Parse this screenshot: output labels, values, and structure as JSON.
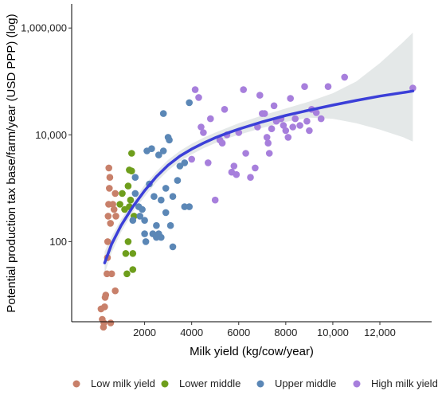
{
  "chart_data": {
    "type": "scatter",
    "xlabel": "Milk yield (kg/cow/year)",
    "ylabel": "Potential production tax base/farm/year (USD PPP) (log)",
    "x_range": [
      -1100,
      14200
    ],
    "y_log_range": [
      0.5,
      6.45
    ],
    "x_ticks": [
      {
        "value": 2000,
        "label": "2000"
      },
      {
        "value": 4000,
        "label": "4000"
      },
      {
        "value": 6000,
        "label": "6000"
      },
      {
        "value": 8000,
        "label": "8000"
      },
      {
        "value": 10000,
        "label": "10,000"
      },
      {
        "value": 12000,
        "label": "12,000"
      }
    ],
    "y_ticks": [
      {
        "value": 100,
        "label": "100"
      },
      {
        "value": 10000,
        "label": "10,000"
      },
      {
        "value": 1000000,
        "label": "1,000,000"
      }
    ],
    "grid": false,
    "legend_position": "bottom",
    "series": [
      {
        "name": "Low milk yield",
        "color": "#c8806a",
        "points": [
          [
            150,
            5.5
          ],
          [
            200,
            3.5
          ],
          [
            250,
            2.5
          ],
          [
            270,
            3
          ],
          [
            300,
            6
          ],
          [
            320,
            9
          ],
          [
            350,
            10
          ],
          [
            400,
            25
          ],
          [
            420,
            50
          ],
          [
            430,
            100
          ],
          [
            450,
            300
          ],
          [
            470,
            500
          ],
          [
            480,
            2400
          ],
          [
            500,
            1000
          ],
          [
            520,
            1600
          ],
          [
            550,
            220
          ],
          [
            560,
            3
          ],
          [
            600,
            25
          ],
          [
            650,
            500
          ],
          [
            700,
            400
          ],
          [
            750,
            12
          ],
          [
            750,
            800
          ],
          [
            780,
            300
          ]
        ]
      },
      {
        "name": "Lower middle",
        "color": "#6e9e1c",
        "points": [
          [
            950,
            500
          ],
          [
            1050,
            800
          ],
          [
            1150,
            400
          ],
          [
            1200,
            60
          ],
          [
            1250,
            25
          ],
          [
            1300,
            100
          ],
          [
            1300,
            1100
          ],
          [
            1350,
            450
          ],
          [
            1350,
            2200
          ],
          [
            1400,
            600
          ],
          [
            1450,
            4500
          ],
          [
            1450,
            2100
          ],
          [
            1500,
            30
          ],
          [
            1500,
            60
          ],
          [
            1550,
            300
          ]
        ]
      },
      {
        "name": "Upper middle",
        "color": "#5b87b6",
        "points": [
          [
            1500,
            250
          ],
          [
            1600,
            800
          ],
          [
            1600,
            1600
          ],
          [
            1750,
            450
          ],
          [
            1800,
            300
          ],
          [
            1900,
            400
          ],
          [
            2000,
            250
          ],
          [
            2000,
            140
          ],
          [
            2050,
            100
          ],
          [
            2100,
            5000
          ],
          [
            2200,
            1200
          ],
          [
            2300,
            5500
          ],
          [
            2350,
            140
          ],
          [
            2400,
            700
          ],
          [
            2500,
            120
          ],
          [
            2500,
            200
          ],
          [
            2600,
            4200
          ],
          [
            2600,
            140
          ],
          [
            2700,
            120
          ],
          [
            2700,
            600
          ],
          [
            2800,
            25000
          ],
          [
            2800,
            5000
          ],
          [
            2900,
            350
          ],
          [
            2900,
            1000
          ],
          [
            3000,
            9000
          ],
          [
            3050,
            8000
          ],
          [
            3100,
            200
          ],
          [
            3200,
            700
          ],
          [
            3200,
            80
          ],
          [
            3400,
            1400
          ],
          [
            3500,
            2600
          ],
          [
            3700,
            450
          ],
          [
            3700,
            3000
          ],
          [
            3900,
            450
          ],
          [
            3900,
            40000
          ]
        ]
      },
      {
        "name": "High milk yield",
        "color": "#a77fdc",
        "points": [
          [
            4000,
            3500
          ],
          [
            4150,
            70000
          ],
          [
            4300,
            50000
          ],
          [
            4400,
            14000
          ],
          [
            4500,
            11000
          ],
          [
            4700,
            3000
          ],
          [
            4800,
            20000
          ],
          [
            5000,
            600
          ],
          [
            5200,
            8000
          ],
          [
            5300,
            7000
          ],
          [
            5400,
            30000
          ],
          [
            5500,
            10000
          ],
          [
            5700,
            2000
          ],
          [
            5800,
            2600
          ],
          [
            5900,
            1800
          ],
          [
            6000,
            11000
          ],
          [
            6200,
            70000
          ],
          [
            6300,
            4500
          ],
          [
            6500,
            1600
          ],
          [
            6700,
            2400
          ],
          [
            6800,
            14000
          ],
          [
            6900,
            55000
          ],
          [
            7000,
            25000
          ],
          [
            7100,
            25000
          ],
          [
            7200,
            9000
          ],
          [
            7250,
            7000
          ],
          [
            7300,
            4500
          ],
          [
            7400,
            13000
          ],
          [
            7500,
            35000
          ],
          [
            7600,
            18000
          ],
          [
            7800,
            20000
          ],
          [
            7900,
            15000
          ],
          [
            8000,
            12000
          ],
          [
            8100,
            9000
          ],
          [
            8200,
            48000
          ],
          [
            8300,
            14000
          ],
          [
            8400,
            20000
          ],
          [
            8600,
            15000
          ],
          [
            8800,
            80000
          ],
          [
            8900,
            18000
          ],
          [
            9000,
            12000
          ],
          [
            9100,
            30000
          ],
          [
            9300,
            26000
          ],
          [
            9500,
            20000
          ],
          [
            9800,
            80000
          ],
          [
            10500,
            120000
          ],
          [
            13400,
            75000
          ]
        ]
      }
    ],
    "fit_line": {
      "color": "#3b3fd8",
      "points": [
        [
          300,
          40
        ],
        [
          600,
          90
        ],
        [
          1000,
          200
        ],
        [
          1500,
          450
        ],
        [
          2000,
          900
        ],
        [
          2500,
          1650
        ],
        [
          3000,
          2700
        ],
        [
          3500,
          4000
        ],
        [
          4000,
          5400
        ],
        [
          4500,
          7000
        ],
        [
          5000,
          8800
        ],
        [
          5500,
          10700
        ],
        [
          6000,
          12800
        ],
        [
          7000,
          17500
        ],
        [
          8000,
          23000
        ],
        [
          9000,
          29000
        ],
        [
          10000,
          36000
        ],
        [
          11000,
          44000
        ],
        [
          12000,
          53000
        ],
        [
          13000,
          62000
        ],
        [
          13400,
          66000
        ]
      ]
    },
    "confidence_band": {
      "color": "#dde2e2",
      "upper": [
        [
          300,
          65
        ],
        [
          600,
          125
        ],
        [
          1000,
          260
        ],
        [
          1500,
          560
        ],
        [
          2000,
          1150
        ],
        [
          2500,
          2050
        ],
        [
          3000,
          3400
        ],
        [
          3500,
          5000
        ],
        [
          4000,
          6800
        ],
        [
          4500,
          8800
        ],
        [
          5000,
          11000
        ],
        [
          5500,
          13500
        ],
        [
          6000,
          16500
        ],
        [
          7000,
          23000
        ],
        [
          8000,
          31000
        ],
        [
          9000,
          42000
        ],
        [
          10000,
          60000
        ],
        [
          11000,
          100000
        ],
        [
          12000,
          220000
        ],
        [
          13000,
          550000
        ],
        [
          13400,
          820000
        ]
      ],
      "lower": [
        [
          13400,
          7500
        ],
        [
          13000,
          9000
        ],
        [
          12000,
          12500
        ],
        [
          11000,
          16500
        ],
        [
          10000,
          20000
        ],
        [
          9000,
          21000
        ],
        [
          8000,
          17500
        ],
        [
          7000,
          13500
        ],
        [
          6000,
          10000
        ],
        [
          5500,
          8500
        ],
        [
          5000,
          7000
        ],
        [
          4500,
          5600
        ],
        [
          4000,
          4300
        ],
        [
          3500,
          3200
        ],
        [
          3000,
          2150
        ],
        [
          2500,
          1300
        ],
        [
          2000,
          700
        ],
        [
          1500,
          360
        ],
        [
          1000,
          150
        ],
        [
          600,
          62
        ],
        [
          300,
          25
        ]
      ]
    }
  }
}
